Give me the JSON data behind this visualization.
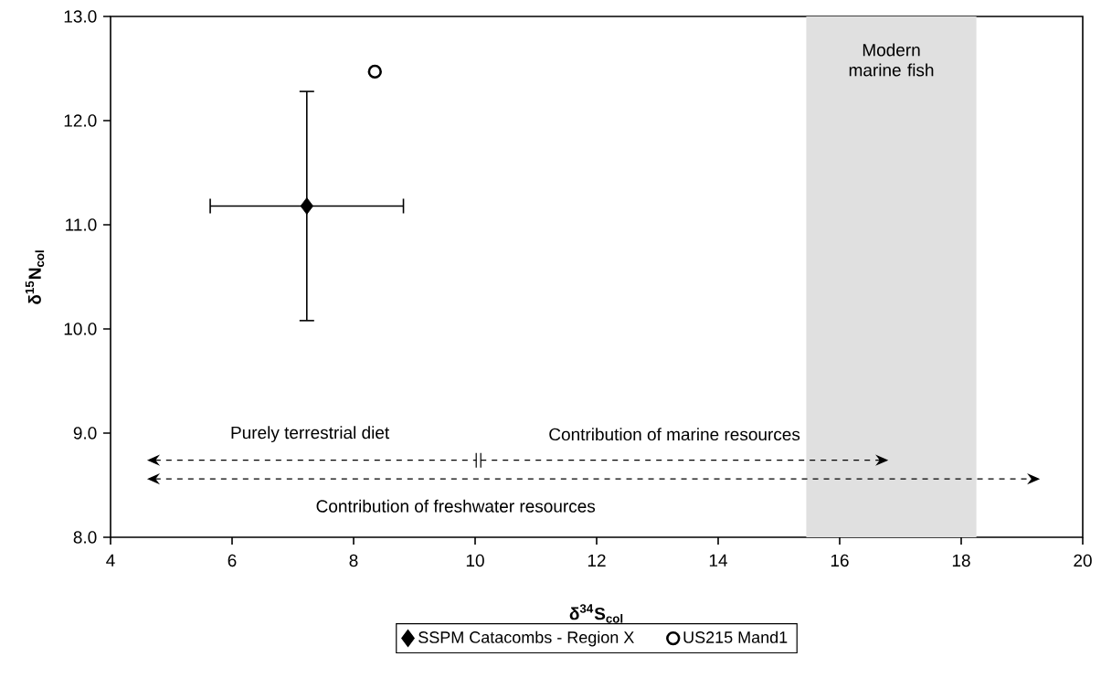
{
  "chart_data": {
    "type": "scatter",
    "xlabel": "δ$^{34}$S$_{col}$",
    "ylabel": "δ$^{15}$N$_{col}$",
    "series": [
      {
        "name": "SSPM Catacombs - Region X",
        "color": "#000000",
        "marker": "diamond",
        "x": [
          7.23
        ],
        "values": [
          11.18
        ],
        "xerrors": [
          1.59
        ],
        "errors": [
          1.1
        ]
      },
      {
        "name": "US215 Mand1",
        "color": "#000000",
        "marker": "circle",
        "x": [
          8.35
        ],
        "values": [
          12.47
        ]
      }
    ],
    "xlim": [
      4,
      20
    ],
    "xticks": [
      4,
      6,
      8,
      10,
      12,
      14,
      16,
      18,
      20
    ],
    "ylim": [
      8,
      13
    ],
    "yticks": [
      {
        "value": 8,
        "label": "8.0"
      },
      {
        "value": 9,
        "label": "9.0"
      },
      {
        "value": 10,
        "label": "10.0"
      },
      {
        "value": 11,
        "label": "11.0"
      },
      {
        "value": 12,
        "label": "12.0"
      },
      {
        "value": 13,
        "label": "13.0"
      }
    ],
    "bands": [
      {
        "axis": "x",
        "from": 15.45,
        "to": 18.25,
        "label": "Modern marine fish",
        "color": "#e0e0e0"
      }
    ],
    "annotations": [
      "Purely terrestrial diet",
      "Contribution of marine resources",
      "Contribution of freshwater resources"
    ],
    "legend": "bottom"
  }
}
